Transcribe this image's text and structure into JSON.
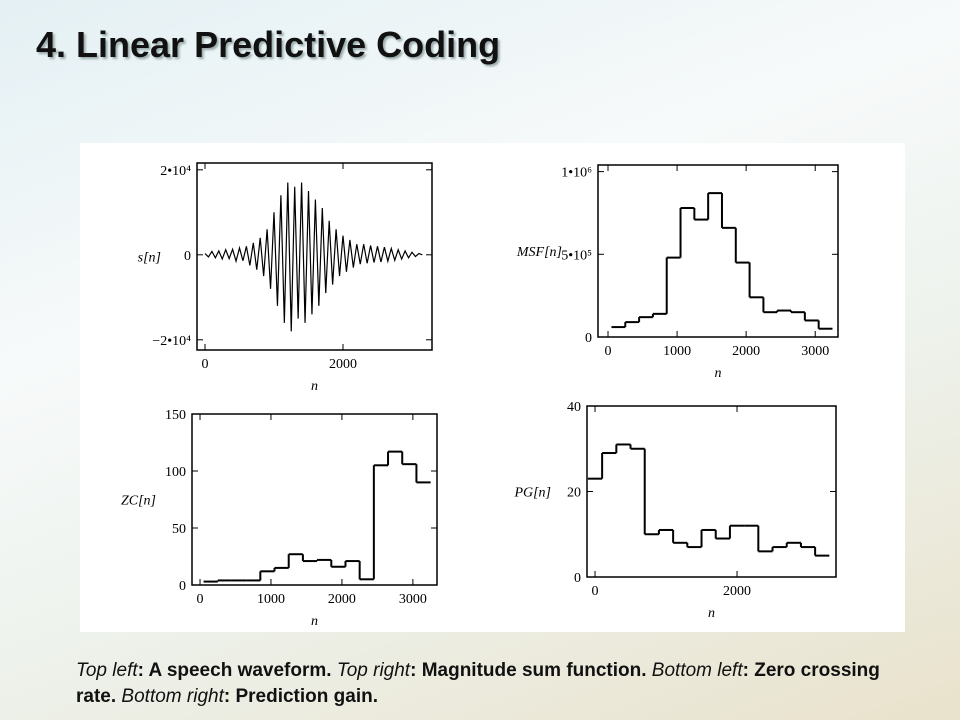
{
  "title": "4. Linear Predictive Coding",
  "caption": [
    {
      "label": "Top left",
      "text": ": A speech waveform. "
    },
    {
      "label": "Top right",
      "text": ": Magnitude sum function. "
    },
    {
      "label": "Bottom left",
      "text": ": Zero crossing rate. "
    },
    {
      "label": "Bottom right",
      "text": ": Prediction gain."
    }
  ],
  "chart_data": [
    {
      "type": "line",
      "y_label": "s[n]",
      "x_label": "n",
      "color": "#000000",
      "x": [
        0,
        50,
        100,
        150,
        200,
        250,
        300,
        350,
        400,
        450,
        500,
        550,
        600,
        650,
        700,
        750,
        800,
        850,
        900,
        950,
        1000,
        1050,
        1100,
        1150,
        1200,
        1250,
        1300,
        1350,
        1400,
        1450,
        1500,
        1550,
        1600,
        1650,
        1700,
        1750,
        1800,
        1850,
        1900,
        1950,
        2000,
        2050,
        2100,
        2150,
        2200,
        2250,
        2300,
        2350,
        2400,
        2450,
        2500,
        2550,
        2600,
        2650,
        2700,
        2750,
        2800,
        2850,
        2900,
        2950,
        3000,
        3050,
        3100,
        3150
      ],
      "values": [
        300,
        -500,
        800,
        -700,
        900,
        -1000,
        1200,
        -900,
        1300,
        -1500,
        1600,
        -1400,
        2000,
        -2500,
        2800,
        -3500,
        4000,
        -5000,
        6000,
        -8000,
        10000,
        -12000,
        14000,
        -16000,
        17000,
        -18000,
        16000,
        -15000,
        17000,
        -16000,
        15000,
        -14000,
        13000,
        -12000,
        11000,
        -9000,
        8000,
        -7000,
        6000,
        -5000,
        4500,
        -4000,
        3500,
        -3000,
        2500,
        -2200,
        2500,
        -2000,
        2200,
        -1800,
        2000,
        -1700,
        1800,
        -1500,
        1500,
        -1300,
        1200,
        -1000,
        900,
        -700,
        600,
        -400,
        300,
        0
      ],
      "xlim": [
        -116,
        3290
      ],
      "xticks": [
        0,
        2000
      ],
      "ylim": [
        -22400,
        21600
      ],
      "yticks": [
        {
          "value": -20000,
          "label": "−2•10⁴"
        },
        0,
        {
          "value": 20000,
          "label": "2•10⁴"
        }
      ]
    },
    {
      "type": "histogram",
      "y_label": "MSF[n]",
      "x_label": "n",
      "color": "#000000",
      "bins": [
        50,
        250,
        450,
        650,
        850,
        1050,
        1250,
        1450,
        1650,
        1850,
        2050,
        2250,
        2450,
        2650,
        2850,
        3050,
        3250
      ],
      "values": [
        60000,
        90000,
        120000,
        140000,
        480000,
        780000,
        710000,
        870000,
        660000,
        450000,
        240000,
        150000,
        160000,
        150000,
        100000,
        50000
      ],
      "xlim": [
        -145,
        3330
      ],
      "xticks": [
        0,
        1000,
        2000,
        3000
      ],
      "ylim": [
        0,
        1040000
      ],
      "yticks": [
        0,
        {
          "value": 500000,
          "label": "5•10⁵"
        },
        {
          "value": 1000000,
          "label": "1•10⁶"
        }
      ]
    },
    {
      "type": "histogram",
      "y_label": "ZC[n]",
      "x_label": "n",
      "color": "#000000",
      "bins": [
        50,
        250,
        450,
        650,
        850,
        1050,
        1250,
        1450,
        1650,
        1850,
        2050,
        2250,
        2450,
        2650,
        2850,
        3050,
        3250
      ],
      "values": [
        3,
        4,
        4,
        4,
        12,
        15,
        27,
        21,
        22,
        16,
        21,
        5,
        105,
        117,
        106,
        90
      ],
      "xlim": [
        -113,
        3340
      ],
      "xticks": [
        0,
        1000,
        2000,
        3000
      ],
      "ylim": [
        0,
        150
      ],
      "yticks": [
        0,
        50,
        100,
        150
      ]
    },
    {
      "type": "histogram",
      "y_label": "PG[n]",
      "x_label": "n",
      "color": "#000000",
      "bins": [
        -100,
        100,
        300,
        500,
        700,
        900,
        1100,
        1300,
        1500,
        1700,
        1900,
        2100,
        2300,
        2500,
        2700,
        2900,
        3100,
        3300
      ],
      "values": [
        23,
        29,
        31,
        30,
        10,
        11,
        8,
        7,
        11,
        9,
        12,
        12,
        6,
        7,
        8,
        7,
        5
      ],
      "xlim": [
        -113,
        3394
      ],
      "xticks": [
        0,
        2000
      ],
      "ylim": [
        0,
        40
      ],
      "yticks": [
        0,
        20,
        40
      ]
    }
  ]
}
